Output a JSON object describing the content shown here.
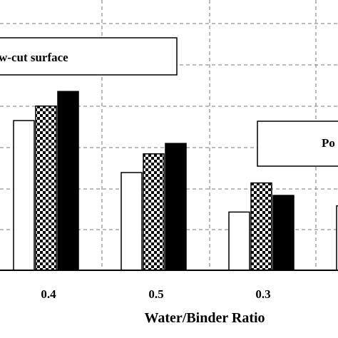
{
  "chart_data": {
    "type": "bar",
    "xlabel": "Water/Binder Ratio",
    "ylabel": "",
    "ylim": [
      0,
      6.5
    ],
    "grid": true,
    "categories": [
      "0.4",
      "0.5",
      "0.3",
      ""
    ],
    "series": [
      {
        "pattern": "white",
        "fill": "#ffffff",
        "values": [
          3.6,
          2.35,
          1.4,
          1.55
        ]
      },
      {
        "pattern": "checkered",
        "fill": "#000000",
        "values": [
          3.95,
          2.8,
          2.1,
          null
        ]
      },
      {
        "pattern": "solid-black",
        "fill": "#000000",
        "values": [
          4.3,
          3.05,
          1.8,
          null
        ]
      }
    ],
    "annotations": [
      {
        "text": "w-cut surface",
        "box": "left"
      },
      {
        "text": "Po",
        "box": "right"
      }
    ]
  }
}
